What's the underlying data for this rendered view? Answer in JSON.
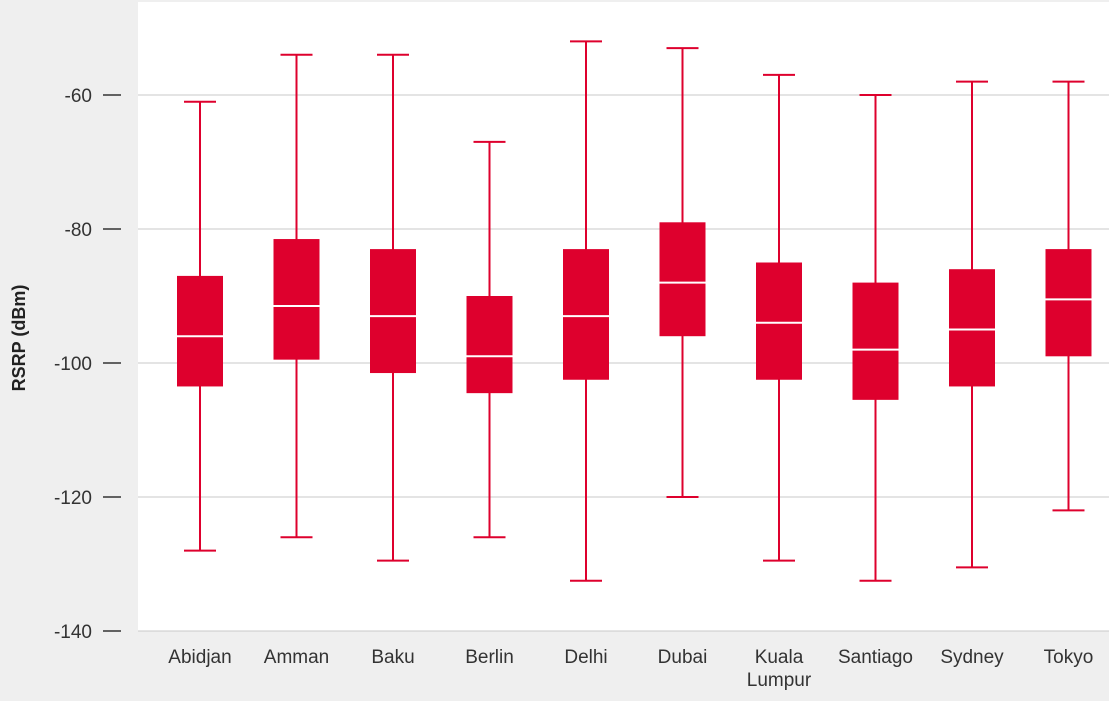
{
  "chart_data": {
    "type": "box",
    "title": "",
    "xlabel": "",
    "ylabel": "RSRP (dBm)",
    "ylim": [
      -140,
      -50
    ],
    "yticks": [
      -60,
      -80,
      -100,
      -120,
      -140
    ],
    "grid": true,
    "color": "#de002d",
    "categories": [
      {
        "label_lines": [
          "Abidjan"
        ],
        "whisker_low": -128,
        "q1": -103.5,
        "median": -96,
        "q3": -87,
        "whisker_high": -61
      },
      {
        "label_lines": [
          "Amman"
        ],
        "whisker_low": -126,
        "q1": -99.5,
        "median": -91.5,
        "q3": -81.5,
        "whisker_high": -54
      },
      {
        "label_lines": [
          "Baku"
        ],
        "whisker_low": -129.5,
        "q1": -101.5,
        "median": -93,
        "q3": -83,
        "whisker_high": -54
      },
      {
        "label_lines": [
          "Berlin"
        ],
        "whisker_low": -126,
        "q1": -104.5,
        "median": -99,
        "q3": -90,
        "whisker_high": -67
      },
      {
        "label_lines": [
          "Delhi"
        ],
        "whisker_low": -132.5,
        "q1": -102.5,
        "median": -93,
        "q3": -83,
        "whisker_high": -52
      },
      {
        "label_lines": [
          "Dubai"
        ],
        "whisker_low": -120,
        "q1": -96,
        "median": -88,
        "q3": -79,
        "whisker_high": -53
      },
      {
        "label_lines": [
          "Kuala",
          "Lumpur"
        ],
        "whisker_low": -129.5,
        "q1": -102.5,
        "median": -94,
        "q3": -85,
        "whisker_high": -57
      },
      {
        "label_lines": [
          "Santiago"
        ],
        "whisker_low": -132.5,
        "q1": -105.5,
        "median": -98,
        "q3": -88,
        "whisker_high": -60
      },
      {
        "label_lines": [
          "Sydney"
        ],
        "whisker_low": -130.5,
        "q1": -103.5,
        "median": -95,
        "q3": -86,
        "whisker_high": -58
      },
      {
        "label_lines": [
          "Tokyo"
        ],
        "whisker_low": -122,
        "q1": -99,
        "median": -90.5,
        "q3": -83,
        "whisker_high": -58
      }
    ]
  }
}
